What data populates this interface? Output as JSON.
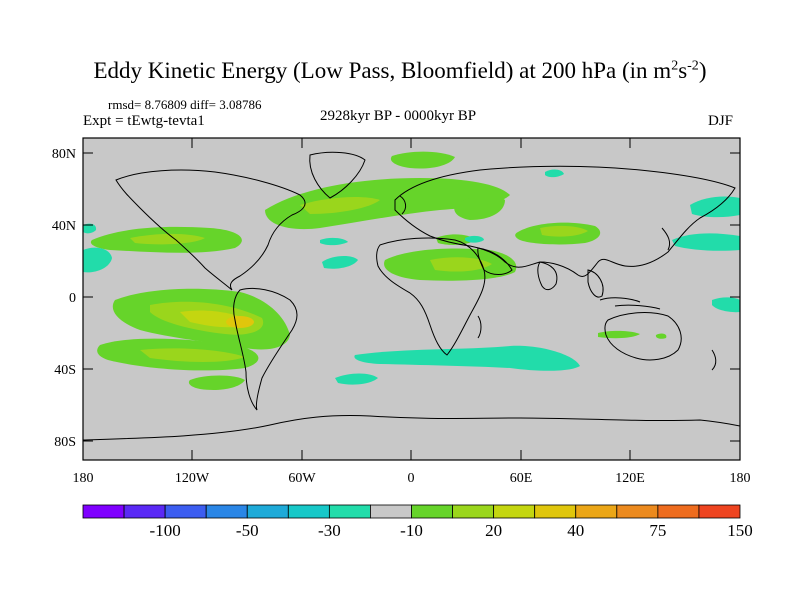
{
  "title": {
    "main": "Eddy Kinetic Energy (Low Pass, Bloomfield) at 200 hPa (in m",
    "sup1": "2",
    "mid": "s",
    "sup2": "-2",
    "end": ")"
  },
  "stats_line": "rmsd= 8.76809 diff= 3.08786",
  "experiment_label": "Expt = tEwtg-tevta1",
  "period_label": "2928kyr BP - 0000kyr BP",
  "season_label": "DJF",
  "axes": {
    "lat_labels": [
      "80N",
      "40N",
      "0",
      "40S",
      "80S"
    ],
    "lon_labels": [
      "180",
      "120W",
      "60W",
      "0",
      "60E",
      "120E",
      "180"
    ]
  },
  "colorbar": {
    "colors": [
      "#7f00ff",
      "#5a29f5",
      "#3c5df0",
      "#2a86e6",
      "#1eaad8",
      "#17c8c8",
      "#22dcaa",
      "#c8c8c8",
      "#66d42a",
      "#9ad61c",
      "#c4d610",
      "#e0c60c",
      "#eba617",
      "#ec8a1e",
      "#ee6c1e",
      "#ee4420"
    ],
    "labels": [
      "-100",
      "-50",
      "-30",
      "-10",
      "20",
      "40",
      "75",
      "150"
    ]
  }
}
